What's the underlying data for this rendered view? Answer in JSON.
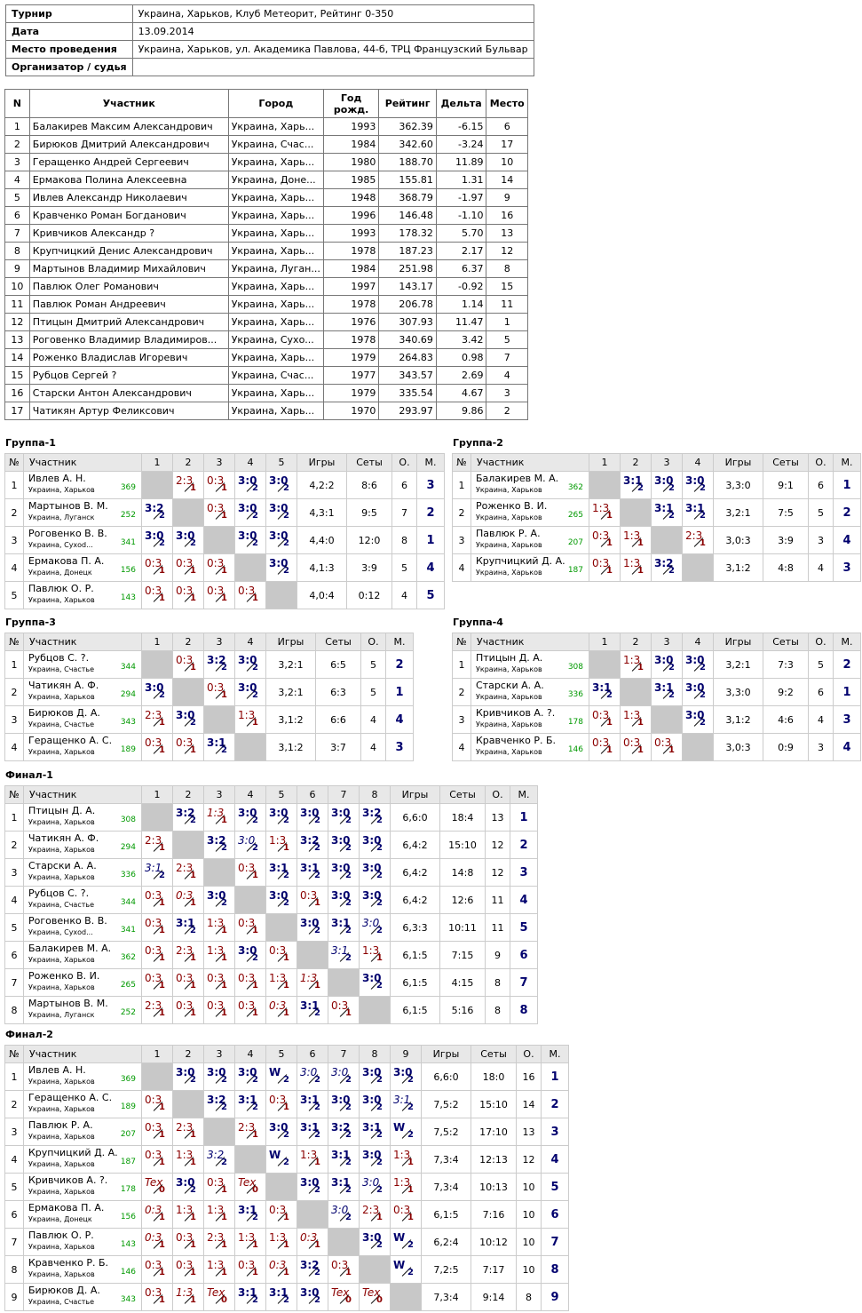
{
  "info": [
    {
      "k": "Турнир",
      "v": "Украина, Харьков, Клуб Метеорит, Рейтинг 0-350"
    },
    {
      "k": "Дата",
      "v": "13.09.2014"
    },
    {
      "k": "Место проведения",
      "v": "Украина, Харьков, ул. Академика Павлова, 44-б, ТРЦ Французский Бульвар"
    },
    {
      "k": "Организатор / судья",
      "v": ""
    }
  ],
  "participants_headers": [
    "N",
    "Участник",
    "Город",
    "Год рожд.",
    "Рейтинг",
    "Дельта",
    "Место"
  ],
  "participants": [
    [
      "1",
      "Балакирев Максим Александрович",
      "Украина, Харь...",
      "1993",
      "362.39",
      "-6.15",
      "6"
    ],
    [
      "2",
      "Бирюков Дмитрий Александрович",
      "Украина, Счас...",
      "1984",
      "342.60",
      "-3.24",
      "17"
    ],
    [
      "3",
      "Геращенко Андрей Сергеевич",
      "Украина, Харь...",
      "1980",
      "188.70",
      "11.89",
      "10"
    ],
    [
      "4",
      "Ермакова Полина Алексеевна",
      "Украина, Доне...",
      "1985",
      "155.81",
      "1.31",
      "14"
    ],
    [
      "5",
      "Ивлев Александр Николаевич",
      "Украина, Харь...",
      "1948",
      "368.79",
      "-1.97",
      "9"
    ],
    [
      "6",
      "Кравченко Роман Богданович",
      "Украина, Харь...",
      "1996",
      "146.48",
      "-1.10",
      "16"
    ],
    [
      "7",
      "Кривчиков Александр ?",
      "Украина, Харь...",
      "1993",
      "178.32",
      "5.70",
      "13"
    ],
    [
      "8",
      "Крупчицкий Денис Александрович",
      "Украина, Харь...",
      "1978",
      "187.23",
      "2.17",
      "12"
    ],
    [
      "9",
      "Мартынов Владимир Михайлович",
      "Украина, Луган...",
      "1984",
      "251.98",
      "6.37",
      "8"
    ],
    [
      "10",
      "Павлюк Олег Романович",
      "Украина, Харь...",
      "1997",
      "143.17",
      "-0.92",
      "15"
    ],
    [
      "11",
      "Павлюк Роман Андреевич",
      "Украина, Харь...",
      "1978",
      "206.78",
      "1.14",
      "11"
    ],
    [
      "12",
      "Птицын Дмитрий Александрович",
      "Украина, Харь...",
      "1976",
      "307.93",
      "11.47",
      "1"
    ],
    [
      "13",
      "Роговенко Владимир Владимиров...",
      "Украина, Сухо...",
      "1978",
      "340.69",
      "3.42",
      "5"
    ],
    [
      "14",
      "Роженко Владислав Игоревич",
      "Украина, Харь...",
      "1979",
      "264.83",
      "0.98",
      "7"
    ],
    [
      "15",
      "Рубцов Сергей ?",
      "Украина, Счас...",
      "1977",
      "343.57",
      "2.69",
      "4"
    ],
    [
      "16",
      "Старски Антон Александрович",
      "Украина, Харь...",
      "1979",
      "335.54",
      "4.67",
      "3"
    ],
    [
      "17",
      "Чатикян Артур Феликсович",
      "Украина, Харь...",
      "1970",
      "293.97",
      "9.86",
      "2"
    ]
  ],
  "groups": [
    {
      "title": "Группа-1",
      "n": 5,
      "rows": [
        {
          "name": "Ивлев А. Н.",
          "town": "Украина, Харьков",
          "rating": "369",
          "res": [
            "X",
            "2:3/1l",
            "0:3/1l",
            "3:0/2w",
            "3:0/2w"
          ],
          "games": "4,2:2",
          "sets": "8:6",
          "pts": "6",
          "place": "3"
        },
        {
          "name": "Мартынов В. М.",
          "town": "Украина, Луганск",
          "rating": "252",
          "res": [
            "3:2/2w",
            "X",
            "0:3/1l",
            "3:0/2w",
            "3:0/2w"
          ],
          "games": "4,3:1",
          "sets": "9:5",
          "pts": "7",
          "place": "2"
        },
        {
          "name": "Роговенко В. В.",
          "town": "Украина, Сухоd...",
          "rating": "341",
          "res": [
            "3:0/2w",
            "3:0/2w",
            "X",
            "3:0/2w",
            "3:0/2w"
          ],
          "games": "4,4:0",
          "sets": "12:0",
          "pts": "8",
          "place": "1"
        },
        {
          "name": "Ермакова П. А.",
          "town": "Украина, Донецк",
          "rating": "156",
          "res": [
            "0:3/1l",
            "0:3/1l",
            "0:3/1l",
            "X",
            "3:0/2w"
          ],
          "games": "4,1:3",
          "sets": "3:9",
          "pts": "5",
          "place": "4"
        },
        {
          "name": "Павлюк О. Р.",
          "town": "Украина, Харьков",
          "rating": "143",
          "res": [
            "0:3/1l",
            "0:3/1l",
            "0:3/1l",
            "0:3/1l",
            "X"
          ],
          "games": "4,0:4",
          "sets": "0:12",
          "pts": "4",
          "place": "5"
        }
      ]
    },
    {
      "title": "Группа-2",
      "n": 4,
      "rows": [
        {
          "name": "Балакирев М. А.",
          "town": "Украина, Харьков",
          "rating": "362",
          "res": [
            "X",
            "3:1/2w",
            "3:0/2w",
            "3:0/2w"
          ],
          "games": "3,3:0",
          "sets": "9:1",
          "pts": "6",
          "place": "1"
        },
        {
          "name": "Роженко В. И.",
          "town": "Украина, Харьков",
          "rating": "265",
          "res": [
            "1:3/1l",
            "X",
            "3:1/2w",
            "3:1/2w"
          ],
          "games": "3,2:1",
          "sets": "7:5",
          "pts": "5",
          "place": "2"
        },
        {
          "name": "Павлюк Р. А.",
          "town": "Украина, Харьков",
          "rating": "207",
          "res": [
            "0:3/1l",
            "1:3/1l",
            "X",
            "2:3/1l"
          ],
          "games": "3,0:3",
          "sets": "3:9",
          "pts": "3",
          "place": "4"
        },
        {
          "name": "Крупчицкий Д. А.",
          "town": "Украина, Харьков",
          "rating": "187",
          "res": [
            "0:3/1l",
            "1:3/1l",
            "3:2/2w",
            "X"
          ],
          "games": "3,1:2",
          "sets": "4:8",
          "pts": "4",
          "place": "3"
        }
      ]
    },
    {
      "title": "Группа-3",
      "n": 4,
      "rows": [
        {
          "name": "Рубцов С. ?.",
          "town": "Украина, Счастье",
          "rating": "344",
          "res": [
            "X",
            "0:3/1l",
            "3:2/2w",
            "3:0/2w"
          ],
          "games": "3,2:1",
          "sets": "6:5",
          "pts": "5",
          "place": "2"
        },
        {
          "name": "Чатикян А. Ф.",
          "town": "Украина, Харьков",
          "rating": "294",
          "res": [
            "3:0/2w",
            "X",
            "0:3/1l",
            "3:0/2w"
          ],
          "games": "3,2:1",
          "sets": "6:3",
          "pts": "5",
          "place": "1"
        },
        {
          "name": "Бирюков Д. А.",
          "town": "Украина, Счастье",
          "rating": "343",
          "res": [
            "2:3/1l",
            "3:0/2w",
            "X",
            "1:3/1l"
          ],
          "games": "3,1:2",
          "sets": "6:6",
          "pts": "4",
          "place": "4"
        },
        {
          "name": "Геращенко А. С.",
          "town": "Украина, Харьков",
          "rating": "189",
          "res": [
            "0:3/1l",
            "0:3/1l",
            "3:1/2w",
            "X"
          ],
          "games": "3,1:2",
          "sets": "3:7",
          "pts": "4",
          "place": "3"
        }
      ]
    },
    {
      "title": "Группа-4",
      "n": 4,
      "rows": [
        {
          "name": "Птицын Д. А.",
          "town": "Украина, Харьков",
          "rating": "308",
          "res": [
            "X",
            "1:3/1l",
            "3:0/2w",
            "3:0/2w"
          ],
          "games": "3,2:1",
          "sets": "7:3",
          "pts": "5",
          "place": "2"
        },
        {
          "name": "Старски А. А.",
          "town": "Украина, Харьков",
          "rating": "336",
          "res": [
            "3:1/2w",
            "X",
            "3:1/2w",
            "3:0/2w"
          ],
          "games": "3,3:0",
          "sets": "9:2",
          "pts": "6",
          "place": "1"
        },
        {
          "name": "Кривчиков А. ?.",
          "town": "Украина, Харьков",
          "rating": "178",
          "res": [
            "0:3/1l",
            "1:3/1l",
            "X",
            "3:0/2w"
          ],
          "games": "3,1:2",
          "sets": "4:6",
          "pts": "4",
          "place": "3"
        },
        {
          "name": "Кравченко Р. Б.",
          "town": "Украина, Харьков",
          "rating": "146",
          "res": [
            "0:3/1l",
            "0:3/1l",
            "0:3/1l",
            "X"
          ],
          "games": "3,0:3",
          "sets": "0:9",
          "pts": "3",
          "place": "4"
        }
      ]
    },
    {
      "title": "Финал-1",
      "n": 8,
      "rows": [
        {
          "name": "Птицын Д. А.",
          "town": "Украина, Харьков",
          "rating": "308",
          "res": [
            "X",
            "3:2/2w",
            "1:3/1i",
            "3:0/2w",
            "3:0/2w",
            "3:0/2w",
            "3:0/2w",
            "3:2/2w"
          ],
          "games": "6,6:0",
          "sets": "18:4",
          "pts": "13",
          "place": "1"
        },
        {
          "name": "Чатикян А. Ф.",
          "town": "Украина, Харьков",
          "rating": "294",
          "res": [
            "2:3/1l",
            "X",
            "3:2/2w",
            "3:0/2i",
            "1:3/1l",
            "3:2/2w",
            "3:0/2w",
            "3:0/2w"
          ],
          "games": "6,4:2",
          "sets": "15:10",
          "pts": "12",
          "place": "2"
        },
        {
          "name": "Старски А. А.",
          "town": "Украина, Харьков",
          "rating": "336",
          "res": [
            "3:1/2i",
            "2:3/1l",
            "X",
            "0:3/1l",
            "3:1/2w",
            "3:1/2w",
            "3:0/2w",
            "3:0/2w"
          ],
          "games": "6,4:2",
          "sets": "14:8",
          "pts": "12",
          "place": "3"
        },
        {
          "name": "Рубцов С. ?.",
          "town": "Украина, Счастье",
          "rating": "344",
          "res": [
            "0:3/1l",
            "0:3/1i",
            "3:0/2w",
            "X",
            "3:0/2w",
            "0:3/1l",
            "3:0/2w",
            "3:0/2w"
          ],
          "games": "6,4:2",
          "sets": "12:6",
          "pts": "11",
          "place": "4"
        },
        {
          "name": "Роговенко В. В.",
          "town": "Украина, Сухоd...",
          "rating": "341",
          "res": [
            "0:3/1l",
            "3:1/2w",
            "1:3/1l",
            "0:3/1l",
            "X",
            "3:0/2w",
            "3:1/2w",
            "3:0/2i"
          ],
          "games": "6,3:3",
          "sets": "10:11",
          "pts": "11",
          "place": "5"
        },
        {
          "name": "Балакирев М. А.",
          "town": "Украина, Харьков",
          "rating": "362",
          "res": [
            "0:3/1l",
            "2:3/1l",
            "1:3/1l",
            "3:0/2w",
            "0:3/1l",
            "X",
            "3:1/2i",
            "1:3/1l"
          ],
          "games": "6,1:5",
          "sets": "7:15",
          "pts": "9",
          "place": "6"
        },
        {
          "name": "Роженко В. И.",
          "town": "Украина, Харьков",
          "rating": "265",
          "res": [
            "0:3/1l",
            "0:3/1l",
            "0:3/1l",
            "0:3/1l",
            "1:3/1l",
            "1:3/1i",
            "X",
            "3:0/2w"
          ],
          "games": "6,1:5",
          "sets": "4:15",
          "pts": "8",
          "place": "7"
        },
        {
          "name": "Мартынов В. М.",
          "town": "Украина, Луганск",
          "rating": "252",
          "res": [
            "2:3/1l",
            "0:3/1l",
            "0:3/1l",
            "0:3/1l",
            "0:3/1i",
            "3:1/2w",
            "0:3/1l",
            "X"
          ],
          "games": "6,1:5",
          "sets": "5:16",
          "pts": "8",
          "place": "8"
        }
      ]
    },
    {
      "title": "Финал-2",
      "n": 9,
      "rows": [
        {
          "name": "Ивлев А. Н.",
          "town": "Украина, Харьков",
          "rating": "369",
          "res": [
            "X",
            "3:0/2w",
            "3:0/2w",
            "3:0/2w",
            "W/2w",
            "3:0/2i",
            "3:0/2i",
            "3:0/2w",
            "3:0/2w"
          ],
          "games": "6,6:0",
          "sets": "18:0",
          "pts": "16",
          "place": "1"
        },
        {
          "name": "Геращенко А. С.",
          "town": "Украина, Харьков",
          "rating": "189",
          "res": [
            "0:3/1l",
            "X",
            "3:2/2w",
            "3:1/2w",
            "0:3/1l",
            "3:1/2w",
            "3:0/2w",
            "3:0/2w",
            "3:1/2i"
          ],
          "games": "7,5:2",
          "sets": "15:10",
          "pts": "14",
          "place": "2"
        },
        {
          "name": "Павлюк Р. А.",
          "town": "Украина, Харьков",
          "rating": "207",
          "res": [
            "0:3/1l",
            "2:3/1l",
            "X",
            "2:3/1l",
            "3:0/2w",
            "3:1/2w",
            "3:2/2w",
            "3:1/2w",
            "W/2w"
          ],
          "games": "7,5:2",
          "sets": "17:10",
          "pts": "13",
          "place": "3"
        },
        {
          "name": "Крупчицкий Д. А.",
          "town": "Украина, Харьков",
          "rating": "187",
          "res": [
            "0:3/1l",
            "1:3/1l",
            "3:2/2i",
            "X",
            "W/2w",
            "1:3/1l",
            "3:1/2w",
            "3:0/2w",
            "1:3/1l"
          ],
          "games": "7,3:4",
          "sets": "12:13",
          "pts": "12",
          "place": "4"
        },
        {
          "name": "Кривчиков А. ?.",
          "town": "Украина, Харьков",
          "rating": "178",
          "res": [
            "Tex/0t",
            "3:0/2w",
            "0:3/1l",
            "Tex/0t",
            "X",
            "3:0/2w",
            "3:1/2w",
            "3:0/2i",
            "1:3/1l"
          ],
          "games": "7,3:4",
          "sets": "10:13",
          "pts": "10",
          "place": "5"
        },
        {
          "name": "Ермакова П. А.",
          "town": "Украина, Донецк",
          "rating": "156",
          "res": [
            "0:3/1i",
            "1:3/1l",
            "1:3/1l",
            "3:1/2w",
            "0:3/1l",
            "X",
            "3:0/2i",
            "2:3/1l",
            "0:3/1l"
          ],
          "games": "6,1:5",
          "sets": "7:16",
          "pts": "10",
          "place": "6"
        },
        {
          "name": "Павлюк О. Р.",
          "town": "Украина, Харьков",
          "rating": "143",
          "res": [
            "0:3/1i",
            "0:3/1l",
            "2:3/1l",
            "1:3/1l",
            "1:3/1l",
            "0:3/1i",
            "X",
            "3:0/2w",
            "W/2w"
          ],
          "games": "6,2:4",
          "sets": "10:12",
          "pts": "10",
          "place": "7"
        },
        {
          "name": "Кравченко Р. Б.",
          "town": "Украина, Харьков",
          "rating": "146",
          "res": [
            "0:3/1l",
            "0:3/1l",
            "1:3/1l",
            "0:3/1l",
            "0:3/1i",
            "3:2/2w",
            "0:3/1l",
            "X",
            "W/2w"
          ],
          "games": "7,2:5",
          "sets": "7:17",
          "pts": "10",
          "place": "8"
        },
        {
          "name": "Бирюков Д. А.",
          "town": "Украина, Счастье",
          "rating": "343",
          "res": [
            "0:3/1l",
            "1:3/1i",
            "Tex/0t",
            "3:1/2w",
            "3:1/2w",
            "3:0/2w",
            "Tex/0t",
            "Tex/0t",
            "X"
          ],
          "games": "7,3:4",
          "sets": "9:14",
          "pts": "8",
          "place": "9"
        }
      ]
    }
  ],
  "group_headers": {
    "no": "№",
    "name": "Участник",
    "games": "Игры",
    "sets": "Сеты",
    "pts": "О.",
    "place": "М."
  },
  "colors": {
    "win": "#00006e",
    "loss": "#8b0000",
    "rating": "#009900",
    "diag": "#c8c8c8"
  }
}
